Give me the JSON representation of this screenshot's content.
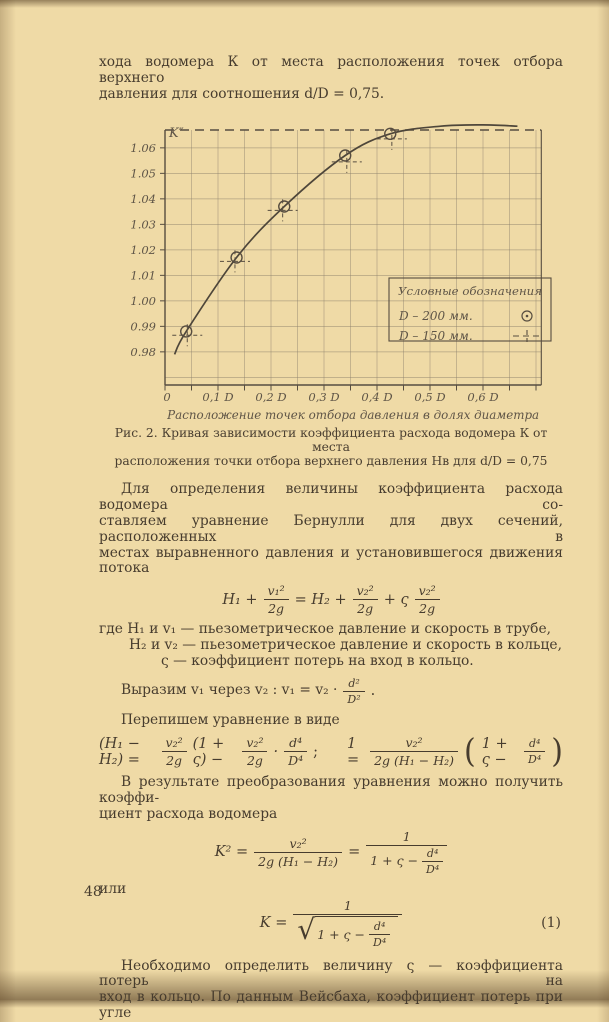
{
  "page": {
    "number": "48"
  },
  "intro": {
    "l1": "хода водомера К от места расположения точек отбора верхнего",
    "l2": "давления для соотношения d/D = 0,75."
  },
  "caption": {
    "l1": "Рис. 2. Кривая зависимости коэффициента расхода водомера К от места",
    "l2": "расположения точки отбора верхнего давления Нв для d/D = 0,75"
  },
  "para1": {
    "l1": "Для определения величины коэффициента расхода водомера со-",
    "l2": "ставляем уравнение Бернулли для двух сечений, расположенных в",
    "l3": "местах выравненного давления и установившегося движения потока"
  },
  "eq1": {
    "t1": "H₁ +",
    "f1n": "v₁²",
    "f1d": "2g",
    "t2": "= H₂ +",
    "f2n": "v₂²",
    "f2d": "2g",
    "t3": "+ ς",
    "f3n": "v₂²",
    "f3d": "2g"
  },
  "where": {
    "l1": "где H₁ и v₁ — пьезометрическое давление и скорость в трубе,",
    "l2": "H₂ и v₂ — пьезометрическое давление и скорость в кольце,",
    "l3": "ς — коэффициент потерь на вход в кольцо."
  },
  "express": {
    "t1": "Выразим v₁ через v₂ : v₁ = v₂ ·",
    "fn": "d²",
    "fd": "D²",
    "t2": "."
  },
  "rewrite": {
    "intro": "Перепишем уравнение в виде"
  },
  "eq2": {
    "t1": "(H₁ − H₂) =",
    "f1n": "v₂²",
    "f1d": "2g",
    "t2": "(1 + ς) −",
    "f2n": "v₂²",
    "f2d": "2g",
    "t3": "·",
    "f3n": "d⁴",
    "f3d": "D⁴",
    "t4": ";",
    "t5": "1 =",
    "f4n": "v₂²",
    "f4d": "2g (H₁ − H₂)",
    "lp": "(",
    "inner": "1 + ς −",
    "f5n": "d⁴",
    "f5d": "D⁴",
    "rp": ")"
  },
  "k2intro": {
    "l1": "В результате преобразования уравнения можно получить коэффи-",
    "l2": "циент расхода водомера"
  },
  "eq3": {
    "t1": "K² =",
    "f1n": "v₂²",
    "f1d": "2g (H₁ − H₂)",
    "t2": "=",
    "f2n": "1",
    "den_pre": "1 + ς −",
    "f3n": "d⁴",
    "f3d": "D⁴"
  },
  "or_label": "или",
  "eq4": {
    "t1": "K =",
    "num": "1",
    "rad": "√",
    "den_pre": "1 + ς −",
    "fn": "d⁴",
    "fd": "D⁴",
    "number": "(1)"
  },
  "outro": {
    "l1": "Необходимо определить величину ς — коэффициента потерь на",
    "l2": "вход в кольцо. По данным Вейсбаха, коэффициент потерь при угле"
  },
  "chart_data": {
    "type": "line",
    "title": "",
    "ylabel": "K″",
    "xlabel": "Расположение точек отбора давления в долях диаметра",
    "xlim": [
      0,
      0.71
    ],
    "ylim": [
      0.967,
      1.067
    ],
    "x_tick_values": [
      0,
      0.1,
      0.2,
      0.3,
      0.4,
      0.5,
      0.6
    ],
    "x_tick_labels": [
      "0",
      "0,1 D",
      "0,2 D",
      "0,3 D",
      "0,4 D",
      "0,5 D",
      "0,6 D"
    ],
    "y_tick_values": [
      0.98,
      0.99,
      1.0,
      1.01,
      1.02,
      1.03,
      1.04,
      1.05,
      1.06
    ],
    "y_tick_labels": [
      "0.98",
      "0.99",
      "1.00",
      "1.01",
      "1.02",
      "1.03",
      "1.04",
      "1.05",
      "1.06"
    ],
    "grid": {
      "x_step": 0.05,
      "y_step": 0.01,
      "y_start": 0.97,
      "on": true
    },
    "curve": [
      [
        0.018,
        0.979
      ],
      [
        0.04,
        0.988
      ],
      [
        0.135,
        1.017
      ],
      [
        0.225,
        1.037
      ],
      [
        0.34,
        1.057
      ],
      [
        0.425,
        1.0655
      ],
      [
        0.52,
        1.0685
      ],
      [
        0.6,
        1.069
      ],
      [
        0.665,
        1.0685
      ]
    ],
    "series": [
      {
        "name": "D – 200 мм.",
        "marker": "circle",
        "points": [
          [
            0.04,
            0.988
          ],
          [
            0.135,
            1.017
          ],
          [
            0.225,
            1.037
          ],
          [
            0.34,
            1.057
          ],
          [
            0.425,
            1.0655
          ]
        ]
      },
      {
        "name": "D – 150 мм.",
        "marker": "cross",
        "points": [
          [
            0.042,
            0.9865
          ],
          [
            0.132,
            1.0155
          ],
          [
            0.222,
            1.0355
          ],
          [
            0.343,
            1.0545
          ],
          [
            0.428,
            1.0635
          ]
        ]
      }
    ],
    "legend": {
      "position": "inside-right",
      "title": "Условные обозначения",
      "items": [
        {
          "label": "D – 200 мм.",
          "marker": "circle"
        },
        {
          "label": "D – 150 мм.",
          "marker": "cross"
        }
      ]
    }
  }
}
